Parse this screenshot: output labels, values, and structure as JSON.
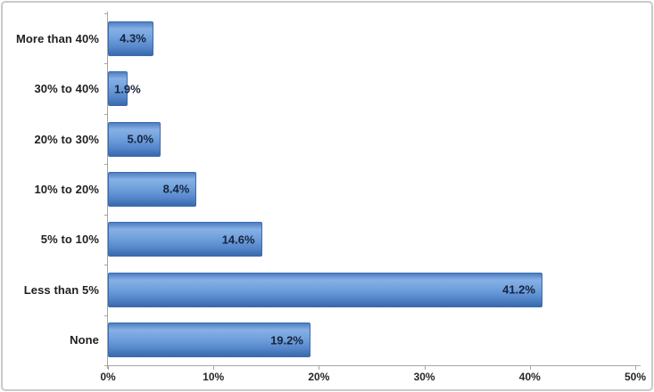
{
  "chart_data": {
    "type": "bar",
    "orientation": "horizontal",
    "title": "",
    "categories": [
      "More than 40%",
      "30% to 40%",
      "20% to 30%",
      "10% to 20%",
      "5% to 10%",
      "Less than 5%",
      "None"
    ],
    "values": [
      4.3,
      1.9,
      5.0,
      8.4,
      14.6,
      41.2,
      19.2
    ],
    "value_labels": [
      "4.3%",
      "1.9%",
      "5.0%",
      "8.4%",
      "14.6%",
      "41.2%",
      "19.2%"
    ],
    "x_ticks": [
      "0%",
      "10%",
      "20%",
      "30%",
      "40%",
      "50%"
    ],
    "xlim": [
      0,
      50
    ],
    "grid": false,
    "legend": false,
    "value_label_position": "inside-end",
    "colors": {
      "bar_fill_light": "#86b0e5",
      "bar_fill_dark": "#3b6cb0",
      "bar_border": "#3a6bad",
      "value_label": "#17233d",
      "category_label": "#1f1f1f",
      "axis": "#a6a6a6",
      "frame_border": "#c9c9c9",
      "background": "#ffffff"
    }
  }
}
